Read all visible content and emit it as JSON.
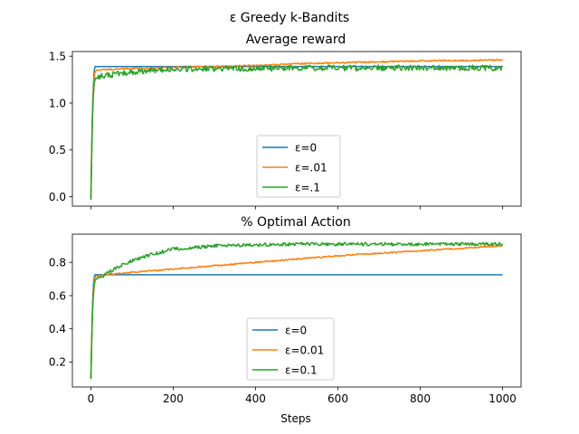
{
  "figure": {
    "suptitle": "ε Greedy k-Bandits"
  },
  "chart_data": [
    {
      "type": "line",
      "title": "Average reward",
      "xlabel": "",
      "ylabel": "",
      "xlim": [
        -45,
        1045
      ],
      "ylim": [
        -0.1,
        1.55
      ],
      "xticks": [
        0,
        200,
        400,
        600,
        800,
        1000
      ],
      "xtick_labels_visible": false,
      "yticks": [
        0.0,
        0.5,
        1.0,
        1.5
      ],
      "ytick_labels": [
        "0.0",
        "0.5",
        "1.0",
        "1.5"
      ],
      "legend_location": "lower center",
      "series": [
        {
          "name": "ε=0",
          "color": "#1f77b4",
          "x": [
            0,
            2,
            4,
            6,
            8,
            10,
            1000
          ],
          "y": [
            -0.02,
            0.55,
            0.95,
            1.2,
            1.34,
            1.39,
            1.39
          ],
          "noise": 0
        },
        {
          "name": "ε=.01",
          "color": "#ff7f0e",
          "x": [
            0,
            2,
            4,
            6,
            8,
            10,
            15,
            50,
            100,
            200,
            300,
            400,
            500,
            600,
            700,
            800,
            900,
            1000
          ],
          "y": [
            -0.03,
            0.5,
            0.92,
            1.15,
            1.28,
            1.33,
            1.35,
            1.36,
            1.37,
            1.38,
            1.39,
            1.4,
            1.42,
            1.43,
            1.44,
            1.45,
            1.455,
            1.46
          ],
          "noise": 0.008
        },
        {
          "name": "ε=.1",
          "color": "#2ca02c",
          "x": [
            0,
            2,
            4,
            6,
            8,
            10,
            15,
            30,
            60,
            100,
            150,
            200,
            300,
            400,
            500,
            600,
            800,
            1000
          ],
          "y": [
            -0.03,
            0.45,
            0.85,
            1.08,
            1.2,
            1.25,
            1.27,
            1.29,
            1.31,
            1.33,
            1.35,
            1.36,
            1.37,
            1.37,
            1.375,
            1.375,
            1.375,
            1.375
          ],
          "noise": 0.03
        }
      ]
    },
    {
      "type": "line",
      "title": "% Optimal Action",
      "xlabel": "Steps",
      "ylabel": "",
      "xlim": [
        -45,
        1045
      ],
      "ylim": [
        0.05,
        0.97
      ],
      "xticks": [
        0,
        200,
        400,
        600,
        800,
        1000
      ],
      "xtick_labels": [
        "0",
        "200",
        "400",
        "600",
        "800",
        "1000"
      ],
      "yticks": [
        0.2,
        0.4,
        0.6,
        0.8
      ],
      "ytick_labels": [
        "0.2",
        "0.4",
        "0.6",
        "0.8"
      ],
      "legend_location": "lower center",
      "series": [
        {
          "name": "ε=0",
          "color": "#1f77b4",
          "x": [
            0,
            2,
            4,
            6,
            8,
            10,
            1000
          ],
          "y": [
            0.1,
            0.35,
            0.55,
            0.66,
            0.71,
            0.726,
            0.726
          ],
          "noise": 0
        },
        {
          "name": "ε=0.01",
          "color": "#ff7f0e",
          "x": [
            0,
            2,
            4,
            6,
            8,
            10,
            15,
            50,
            100,
            200,
            300,
            400,
            500,
            600,
            700,
            800,
            900,
            1000
          ],
          "y": [
            0.1,
            0.33,
            0.52,
            0.63,
            0.69,
            0.71,
            0.72,
            0.73,
            0.74,
            0.76,
            0.78,
            0.8,
            0.82,
            0.84,
            0.855,
            0.87,
            0.885,
            0.9
          ],
          "noise": 0.004
        },
        {
          "name": "ε=0.1",
          "color": "#2ca02c",
          "x": [
            0,
            2,
            4,
            6,
            8,
            10,
            15,
            30,
            50,
            80,
            100,
            150,
            200,
            250,
            300,
            400,
            500,
            600,
            700,
            800,
            900,
            1000
          ],
          "y": [
            0.1,
            0.32,
            0.5,
            0.6,
            0.66,
            0.69,
            0.7,
            0.72,
            0.75,
            0.79,
            0.81,
            0.85,
            0.88,
            0.89,
            0.9,
            0.905,
            0.91,
            0.91,
            0.91,
            0.91,
            0.91,
            0.91
          ],
          "noise": 0.01
        }
      ]
    }
  ]
}
